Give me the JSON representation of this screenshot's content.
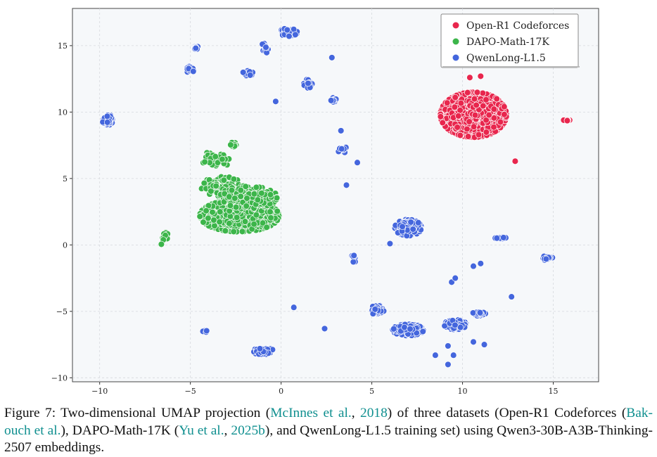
{
  "chart_data": {
    "type": "scatter",
    "title": "",
    "xlabel": "",
    "ylabel": "",
    "xlim": [
      -11.5,
      17.5
    ],
    "ylim": [
      -10.3,
      17.8
    ],
    "x_ticks": [
      -10,
      -5,
      0,
      5,
      10,
      15
    ],
    "y_ticks": [
      -10,
      -5,
      0,
      5,
      10,
      15
    ],
    "grid": true,
    "legend_position": "top-right",
    "series": [
      {
        "name": "Open-R1 Codeforces",
        "color": "#e8264d",
        "clusters": [
          {
            "cx": 10.6,
            "cy": 9.8,
            "sx": 1.5,
            "sy": 1.4,
            "n": 1400
          },
          {
            "cx": 15.8,
            "cy": 9.4,
            "sx": 0.3,
            "sy": 0.06,
            "n": 10
          }
        ],
        "points": [
          [
            12.9,
            6.3
          ],
          [
            10.4,
            12.6
          ],
          [
            11.0,
            12.7
          ]
        ]
      },
      {
        "name": "DAPO-Math-17K",
        "color": "#3cb54a",
        "clusters": [
          {
            "cx": -2.3,
            "cy": 2.2,
            "sx": 1.8,
            "sy": 1.0,
            "n": 900
          },
          {
            "cx": -3.2,
            "cy": 4.4,
            "sx": 1.0,
            "sy": 0.6,
            "n": 150
          },
          {
            "cx": -1.8,
            "cy": 3.6,
            "sx": 1.3,
            "sy": 0.7,
            "n": 250
          },
          {
            "cx": -3.6,
            "cy": 6.4,
            "sx": 0.6,
            "sy": 0.6,
            "n": 40
          },
          {
            "cx": -2.6,
            "cy": 7.5,
            "sx": 0.2,
            "sy": 0.2,
            "n": 10
          },
          {
            "cx": -6.4,
            "cy": 0.7,
            "sx": 0.15,
            "sy": 0.3,
            "n": 10
          }
        ],
        "points": [
          [
            -6.6,
            0.05
          ]
        ]
      },
      {
        "name": "QwenLong-L1.5",
        "color": "#4466dd",
        "clusters": [
          {
            "cx": -9.5,
            "cy": 9.4,
            "sx": 0.3,
            "sy": 0.3,
            "n": 60
          },
          {
            "cx": -5.0,
            "cy": 13.2,
            "sx": 0.2,
            "sy": 0.2,
            "n": 20
          },
          {
            "cx": -4.7,
            "cy": 14.8,
            "sx": 0.2,
            "sy": 0.15,
            "n": 10
          },
          {
            "cx": -1.8,
            "cy": 12.9,
            "sx": 0.3,
            "sy": 0.2,
            "n": 20
          },
          {
            "cx": -0.9,
            "cy": 14.8,
            "sx": 0.2,
            "sy": 0.3,
            "n": 15
          },
          {
            "cx": 0.4,
            "cy": 16.0,
            "sx": 0.4,
            "sy": 0.25,
            "n": 80
          },
          {
            "cx": 1.5,
            "cy": 12.2,
            "sx": 0.2,
            "sy": 0.4,
            "n": 20
          },
          {
            "cx": 2.9,
            "cy": 11.0,
            "sx": 0.2,
            "sy": 0.3,
            "n": 12
          },
          {
            "cx": 3.4,
            "cy": 7.2,
            "sx": 0.3,
            "sy": 0.2,
            "n": 12
          },
          {
            "cx": 7.0,
            "cy": 1.3,
            "sx": 0.6,
            "sy": 0.5,
            "n": 180
          },
          {
            "cx": 12.1,
            "cy": 0.5,
            "sx": 0.25,
            "sy": 0.08,
            "n": 20
          },
          {
            "cx": 14.6,
            "cy": -1.0,
            "sx": 0.3,
            "sy": 0.15,
            "n": 20
          },
          {
            "cx": 4.0,
            "cy": -0.9,
            "sx": 0.1,
            "sy": 0.4,
            "n": 10
          },
          {
            "cx": 5.3,
            "cy": -4.9,
            "sx": 0.3,
            "sy": 0.3,
            "n": 60
          },
          {
            "cx": 7.0,
            "cy": -6.4,
            "sx": 0.7,
            "sy": 0.35,
            "n": 250
          },
          {
            "cx": 9.6,
            "cy": -6.0,
            "sx": 0.5,
            "sy": 0.3,
            "n": 120
          },
          {
            "cx": 10.9,
            "cy": -5.2,
            "sx": 0.3,
            "sy": 0.15,
            "n": 30
          },
          {
            "cx": -1.0,
            "cy": -8.0,
            "sx": 0.5,
            "sy": 0.2,
            "n": 70
          },
          {
            "cx": -4.2,
            "cy": -6.5,
            "sx": 0.2,
            "sy": 0.05,
            "n": 4
          }
        ],
        "points": [
          [
            -0.3,
            10.8
          ],
          [
            2.8,
            14.1
          ],
          [
            3.3,
            8.6
          ],
          [
            4.2,
            6.2
          ],
          [
            3.6,
            4.5
          ],
          [
            6.0,
            0.1
          ],
          [
            10.6,
            -1.6
          ],
          [
            11.0,
            -1.4
          ],
          [
            0.7,
            -4.7
          ],
          [
            2.4,
            -6.3
          ],
          [
            9.4,
            -2.8
          ],
          [
            9.6,
            -2.5
          ],
          [
            12.7,
            -3.9
          ],
          [
            11.2,
            -7.5
          ],
          [
            10.6,
            -7.3
          ],
          [
            9.2,
            -7.6
          ],
          [
            9.2,
            -9.0
          ],
          [
            9.5,
            -8.3
          ],
          [
            8.5,
            -8.3
          ]
        ]
      }
    ]
  },
  "caption": {
    "label": "Figure 7:",
    "text1": " Two-dimensional UMAP projection (",
    "cite1a": "McInnes et al.",
    "sep1": ", ",
    "cite1b": "2018",
    "text2": ") of three datasets (Open-R1 Codeforces (",
    "cite2": "Bak-ouch et al.",
    "text3": "), DAPO-Math-17K (",
    "cite3a": "Yu et al.",
    "sep3": ", ",
    "cite3b": "2025b",
    "text4": "), and QwenLong-L1.5 training set) using Qwen3-30B-A3B-Thinking-2507 embeddings."
  }
}
